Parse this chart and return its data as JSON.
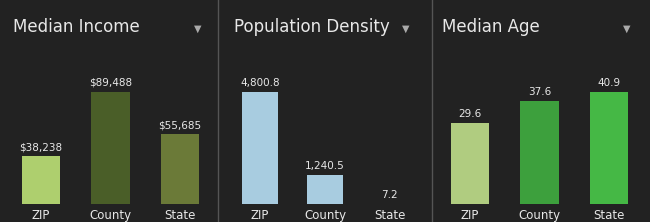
{
  "background_color": "#222222",
  "panels": [
    {
      "title": "Median Income",
      "categories": [
        "ZIP",
        "County",
        "State"
      ],
      "values": [
        38238,
        89488,
        55685
      ],
      "labels": [
        "$38,238",
        "$89,488",
        "$55,685"
      ],
      "colors": [
        "#aecf6e",
        "#4a5e28",
        "#6b7a38"
      ],
      "bar_width": 0.55
    },
    {
      "title": "Population Density",
      "categories": [
        "ZIP",
        "County",
        "State"
      ],
      "values": [
        4800.8,
        1240.5,
        7.2
      ],
      "labels": [
        "4,800.8",
        "1,240.5",
        "7.2"
      ],
      "colors": [
        "#a8cce0",
        "#a8cce0",
        "#a8cce0"
      ],
      "bar_width": 0.55
    },
    {
      "title": "Median Age",
      "categories": [
        "ZIP",
        "County",
        "State"
      ],
      "values": [
        29.6,
        37.6,
        40.9
      ],
      "labels": [
        "29.6",
        "37.6",
        "40.9"
      ],
      "colors": [
        "#b0cc80",
        "#3da03d",
        "#45b845"
      ],
      "bar_width": 0.55
    }
  ],
  "title_fontsize": 12,
  "label_fontsize": 7.5,
  "tick_fontsize": 8.5,
  "text_color": "#e8e8e8",
  "divider_color": "#555555",
  "dropdown_color": "#aaaaaa",
  "arrow_fontsize": 7
}
